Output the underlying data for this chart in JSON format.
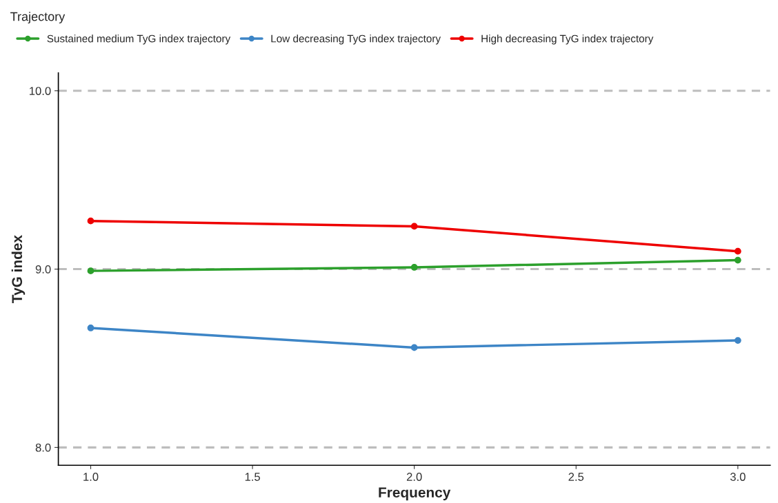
{
  "chart_data": {
    "type": "line",
    "xlabel": "Frequency",
    "ylabel": "TyG index",
    "legend_title": "Trajectory",
    "x": [
      1.0,
      2.0,
      3.0
    ],
    "series": [
      {
        "name": "Sustained medium TyG index trajectory",
        "color": "#2ca02c",
        "values": [
          8.99,
          9.01,
          9.05
        ]
      },
      {
        "name": "Low decreasing TyG index trajectory",
        "color": "#3d85c6",
        "values": [
          8.67,
          8.56,
          8.6
        ]
      },
      {
        "name": "High decreasing TyG index trajectory",
        "color": "#ee0000",
        "values": [
          9.27,
          9.24,
          9.1
        ]
      }
    ],
    "xlim": [
      0.9,
      3.1
    ],
    "ylim": [
      7.9,
      10.1
    ],
    "xticks": [
      {
        "value": 1.0,
        "label": "1.0"
      },
      {
        "value": 1.5,
        "label": "1.5"
      },
      {
        "value": 2.0,
        "label": "2.0"
      },
      {
        "value": 2.5,
        "label": "2.5"
      },
      {
        "value": 3.0,
        "label": "3.0"
      }
    ],
    "yticks": [
      {
        "value": 8.0,
        "label": "8.0"
      },
      {
        "value": 9.0,
        "label": "9.0"
      },
      {
        "value": 10.0,
        "label": "10.0"
      }
    ],
    "ref_lines": [
      {
        "axis": "y",
        "value": 8.0,
        "color": "#bdbdbd",
        "line_style": "dashed"
      },
      {
        "axis": "y",
        "value": 9.0,
        "color": "#bdbdbd",
        "line_style": "dashed"
      },
      {
        "axis": "y",
        "value": 10.0,
        "color": "#bdbdbd",
        "line_style": "dashed"
      }
    ],
    "grid": false,
    "legend": "top",
    "marker": "circle",
    "line_style": "solid"
  }
}
